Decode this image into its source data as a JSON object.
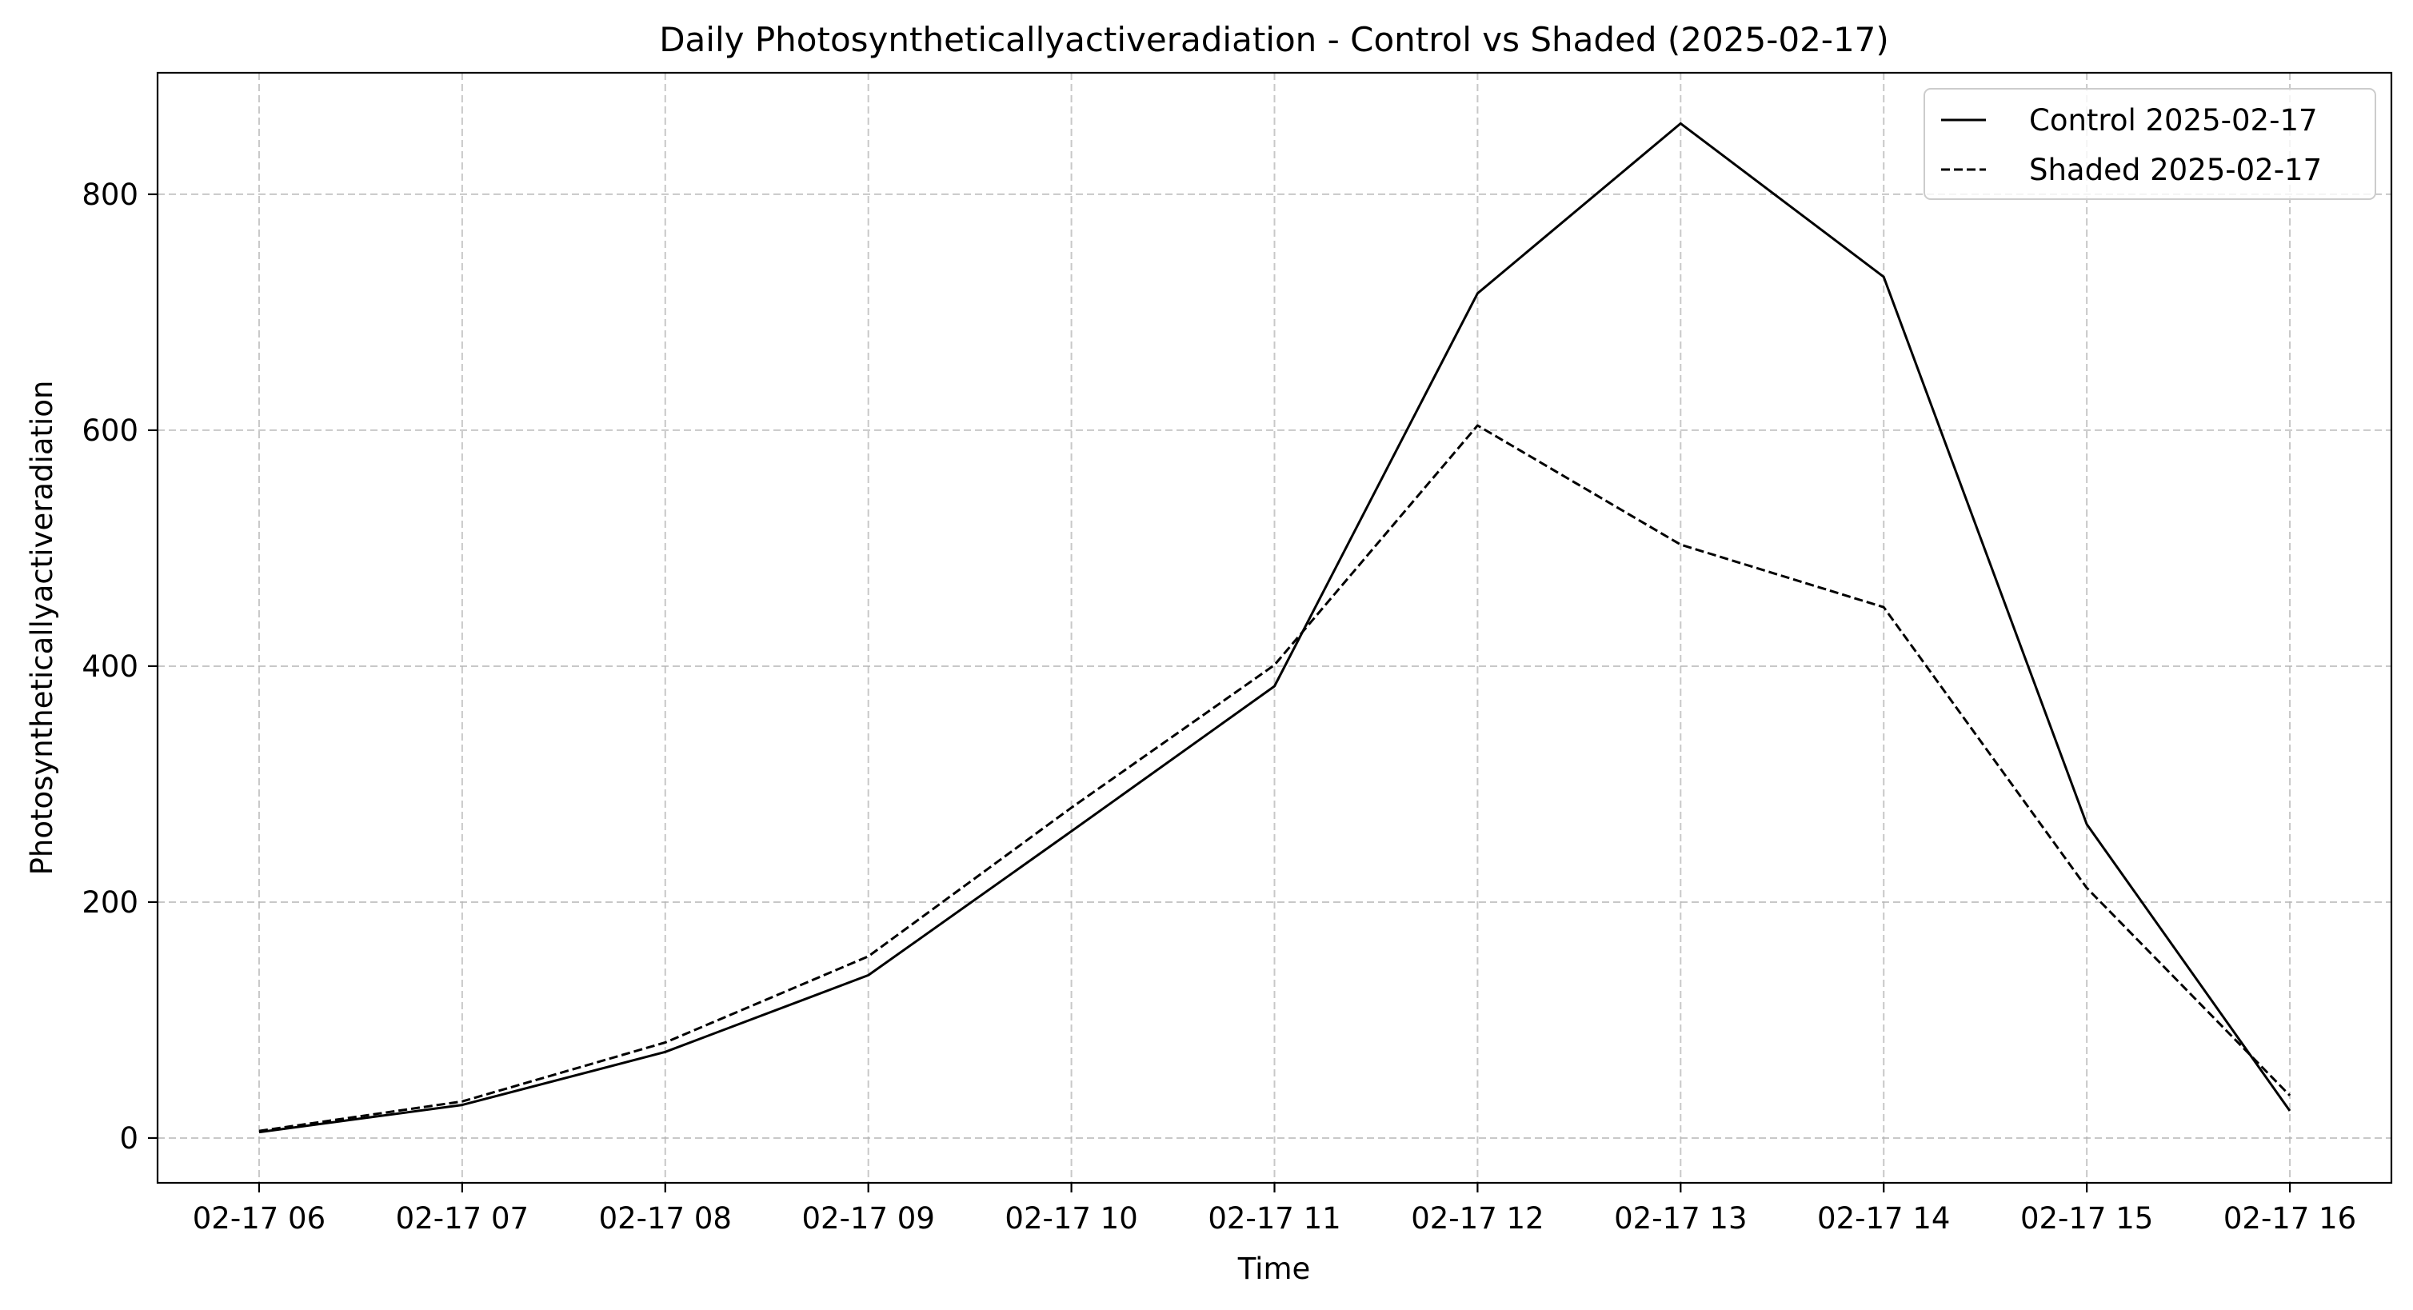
{
  "chart_data": {
    "type": "line",
    "title": "Daily Photosyntheticallyactiveradiation - Control vs Shaded (2025-02-17)",
    "xlabel": "Time",
    "ylabel": "Photosyntheticallyactiveradiation",
    "categories": [
      "02-17 06",
      "02-17 07",
      "02-17 08",
      "02-17 09",
      "02-17 10",
      "02-17 11",
      "02-17 12",
      "02-17 13",
      "02-17 14",
      "02-17 15",
      "02-17 16"
    ],
    "xlim": [
      -0.5,
      10.5
    ],
    "ylim": [
      -38,
      903
    ],
    "yticks": [
      0,
      200,
      400,
      600,
      800
    ],
    "grid": true,
    "legend_position": "upper right",
    "series": [
      {
        "name": "Control 2025-02-17",
        "line_style": "solid",
        "color": "#000000",
        "values": [
          5,
          28,
          73,
          138,
          260,
          383,
          716,
          860,
          730,
          266,
          23
        ]
      },
      {
        "name": "Shaded 2025-02-17",
        "line_style": "dashed",
        "color": "#000000",
        "values": [
          6,
          31,
          81,
          154,
          280,
          401,
          604,
          503,
          450,
          212,
          36
        ]
      }
    ]
  }
}
